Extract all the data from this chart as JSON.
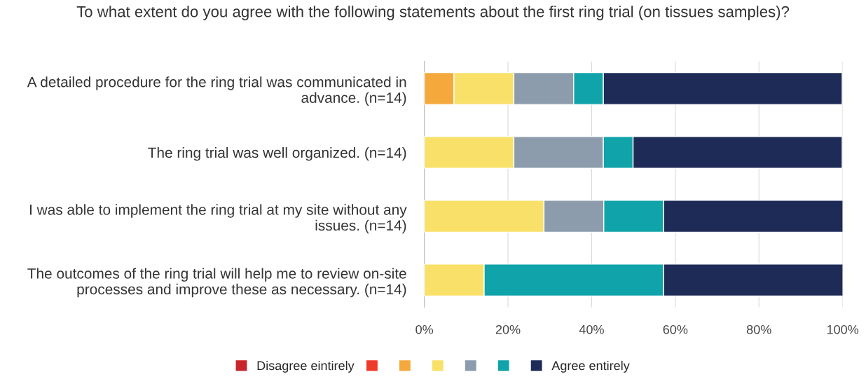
{
  "chart_data": {
    "type": "bar",
    "orientation": "horizontal",
    "stacked": true,
    "title": "To what extent do you agree with the following statements about the first ring trial (on tissues samples)?",
    "categories": [
      "A detailed procedure for the ring trial was communicated in\nadvance. (n=14)",
      "The ring trial was well organized. (n=14)",
      "I was able to implement the ring trial at my site without any\nissues. (n=14)",
      "The outcomes of the ring trial will help me to review on-site\nprocesses and improve these as necessary. (n=14)"
    ],
    "series": [
      {
        "name": "Disagree eintirely",
        "color": "#c9252c",
        "values": [
          0,
          0,
          0,
          0
        ]
      },
      {
        "color": "#ee3b2b",
        "values": [
          0,
          0,
          0,
          0
        ]
      },
      {
        "color": "#f5a93d",
        "values": [
          7.1,
          0,
          0,
          0
        ]
      },
      {
        "color": "#f9e068",
        "values": [
          14.3,
          21.4,
          28.6,
          14.3
        ]
      },
      {
        "color": "#8c9cac",
        "values": [
          14.3,
          21.4,
          14.3,
          0
        ]
      },
      {
        "color": "#10a3a9",
        "values": [
          7.1,
          7.1,
          14.3,
          42.9
        ]
      },
      {
        "name": "Agree entirely",
        "color": "#1f2b57",
        "values": [
          57.1,
          50.0,
          42.9,
          42.9
        ]
      }
    ],
    "xlim": [
      0,
      100
    ],
    "xticks": [
      {
        "value": 0,
        "label": "0%"
      },
      {
        "value": 20,
        "label": "20%"
      },
      {
        "value": 40,
        "label": "40%"
      },
      {
        "value": 60,
        "label": "60%"
      },
      {
        "value": 80,
        "label": "80%"
      },
      {
        "value": 100,
        "label": "100%"
      }
    ],
    "grid": "x",
    "legend": "bottom"
  }
}
